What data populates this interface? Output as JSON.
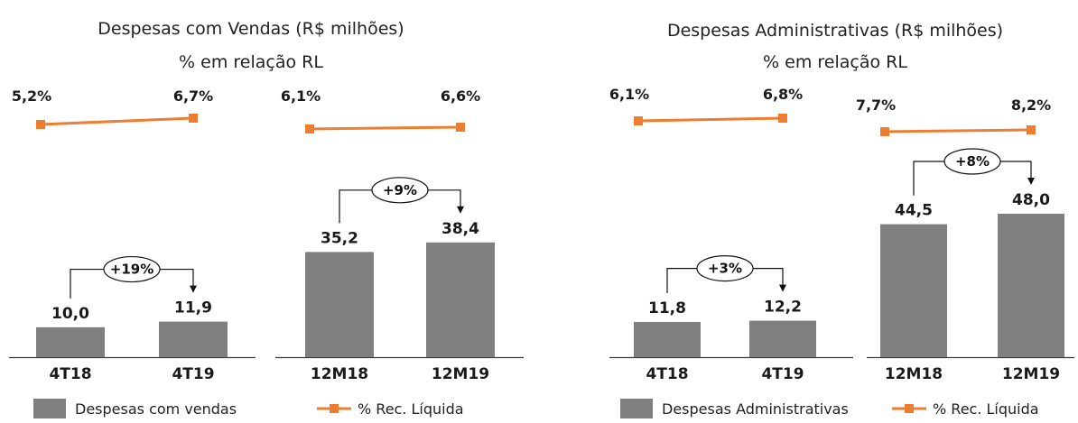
{
  "chart_data": [
    {
      "type": "bar",
      "title": "Despesas com Vendas (R$ milhões)",
      "subtitle": "% em relação RL",
      "groups": [
        {
          "categories": [
            "4T18",
            "4T19"
          ],
          "values": [
            10.0,
            11.9
          ],
          "value_labels": [
            "10,0",
            "11,9"
          ],
          "pct": [
            5.2,
            6.7
          ],
          "pct_labels": [
            "5,2%",
            "6,7%"
          ],
          "growth": "+19%"
        },
        {
          "categories": [
            "12M18",
            "12M19"
          ],
          "values": [
            35.2,
            38.4
          ],
          "value_labels": [
            "35,2",
            "38,4"
          ],
          "pct": [
            6.1,
            6.6
          ],
          "pct_labels": [
            "6,1%",
            "6,6%"
          ],
          "growth": "+9%"
        }
      ],
      "legend": {
        "bar": "Despesas com vendas",
        "line": "% Rec. Líquida"
      }
    },
    {
      "type": "bar",
      "title": "Despesas Administrativas  (R$ milhões)",
      "subtitle": "% em relação RL",
      "groups": [
        {
          "categories": [
            "4T18",
            "4T19"
          ],
          "values": [
            11.8,
            12.2
          ],
          "value_labels": [
            "11,8",
            "12,2"
          ],
          "pct": [
            6.1,
            6.8
          ],
          "pct_labels": [
            "6,1%",
            "6,8%"
          ],
          "growth": "+3%"
        },
        {
          "categories": [
            "12M18",
            "12M19"
          ],
          "values": [
            44.5,
            48.0
          ],
          "value_labels": [
            "44,5",
            "48,0"
          ],
          "pct": [
            7.7,
            8.2
          ],
          "pct_labels": [
            "7,7%",
            "8,2%"
          ],
          "growth": "+8%"
        }
      ],
      "legend": {
        "bar": "Despesas Administrativas",
        "line": "% Rec. Líquida"
      }
    }
  ],
  "colors": {
    "bar": "#7f7f7f",
    "line": "#ed7d31",
    "axis": "#3a3a3a"
  }
}
